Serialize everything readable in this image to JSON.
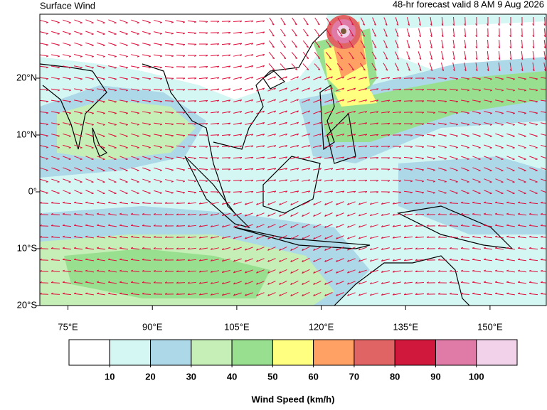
{
  "header": {
    "title": "Surface Wind",
    "subtitle": "48-hr forecast valid 8 AM 9 Aug 2026"
  },
  "map": {
    "lonlim": [
      70,
      160
    ],
    "latlim": [
      -20,
      31.25
    ],
    "lonticks": [
      {
        "value": 75,
        "label": "75°E"
      },
      {
        "value": 90,
        "label": "90°E"
      },
      {
        "value": 105,
        "label": "105°E"
      },
      {
        "value": 120,
        "label": "120°E"
      },
      {
        "value": 135,
        "label": "135°E"
      },
      {
        "value": 150,
        "label": "150°E"
      }
    ],
    "latticks": [
      {
        "value": -20,
        "label": "20°S"
      },
      {
        "value": -10,
        "label": "10°S"
      },
      {
        "value": 0,
        "label": "0°"
      },
      {
        "value": 10,
        "label": "10°N"
      },
      {
        "value": 20,
        "label": "20°N"
      }
    ]
  },
  "colorbar": {
    "title": "Wind Speed (km/h)",
    "colors": [
      "#ffffff",
      "#d4f7f4",
      "#acd8e8",
      "#c6efb8",
      "#98e090",
      "#ffff80",
      "#ffa064",
      "#e06464",
      "#d0183c",
      "#e07aa6",
      "#f2d2ea"
    ],
    "ticks": [
      10,
      20,
      30,
      40,
      50,
      60,
      70,
      80,
      90,
      100
    ]
  }
}
